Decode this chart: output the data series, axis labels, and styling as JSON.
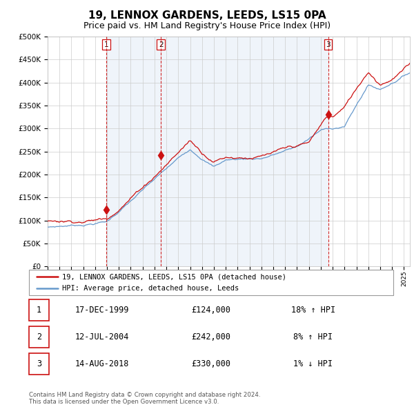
{
  "title": "19, LENNOX GARDENS, LEEDS, LS15 0PA",
  "subtitle": "Price paid vs. HM Land Registry's House Price Index (HPI)",
  "title_fontsize": 11,
  "subtitle_fontsize": 9,
  "ylim": [
    0,
    500000
  ],
  "xlim_start": 1995.0,
  "xlim_end": 2025.5,
  "hpi_color": "#6699cc",
  "hpi_bg_color": "#dce8f5",
  "price_color": "#cc1111",
  "grid_color": "#cccccc",
  "background_color": "#ffffff",
  "transactions": [
    {
      "x": 1999.96,
      "price": 124000,
      "label": "1"
    },
    {
      "x": 2004.54,
      "price": 242000,
      "label": "2"
    },
    {
      "x": 2018.62,
      "price": 330000,
      "label": "3"
    }
  ],
  "legend_price_label": "19, LENNOX GARDENS, LEEDS, LS15 0PA (detached house)",
  "legend_hpi_label": "HPI: Average price, detached house, Leeds",
  "table_rows": [
    {
      "num": "1",
      "date": "17-DEC-1999",
      "price": "£124,000",
      "hpi": "18% ↑ HPI"
    },
    {
      "num": "2",
      "date": "12-JUL-2004",
      "price": "£242,000",
      "hpi": "8% ↑ HPI"
    },
    {
      "num": "3",
      "date": "14-AUG-2018",
      "price": "£330,000",
      "hpi": "1% ↓ HPI"
    }
  ],
  "footer": "Contains HM Land Registry data © Crown copyright and database right 2024.\nThis data is licensed under the Open Government Licence v3.0.",
  "yticks": [
    0,
    50000,
    100000,
    150000,
    200000,
    250000,
    300000,
    350000,
    400000,
    450000,
    500000
  ],
  "ytick_labels": [
    "£0",
    "£50K",
    "£100K",
    "£150K",
    "£200K",
    "£250K",
    "£300K",
    "£350K",
    "£400K",
    "£450K",
    "£500K"
  ],
  "xtick_years": [
    1995,
    1996,
    1997,
    1998,
    1999,
    2000,
    2001,
    2002,
    2003,
    2004,
    2005,
    2006,
    2007,
    2008,
    2009,
    2010,
    2011,
    2012,
    2013,
    2014,
    2015,
    2016,
    2017,
    2018,
    2019,
    2020,
    2021,
    2022,
    2023,
    2024,
    2025
  ]
}
